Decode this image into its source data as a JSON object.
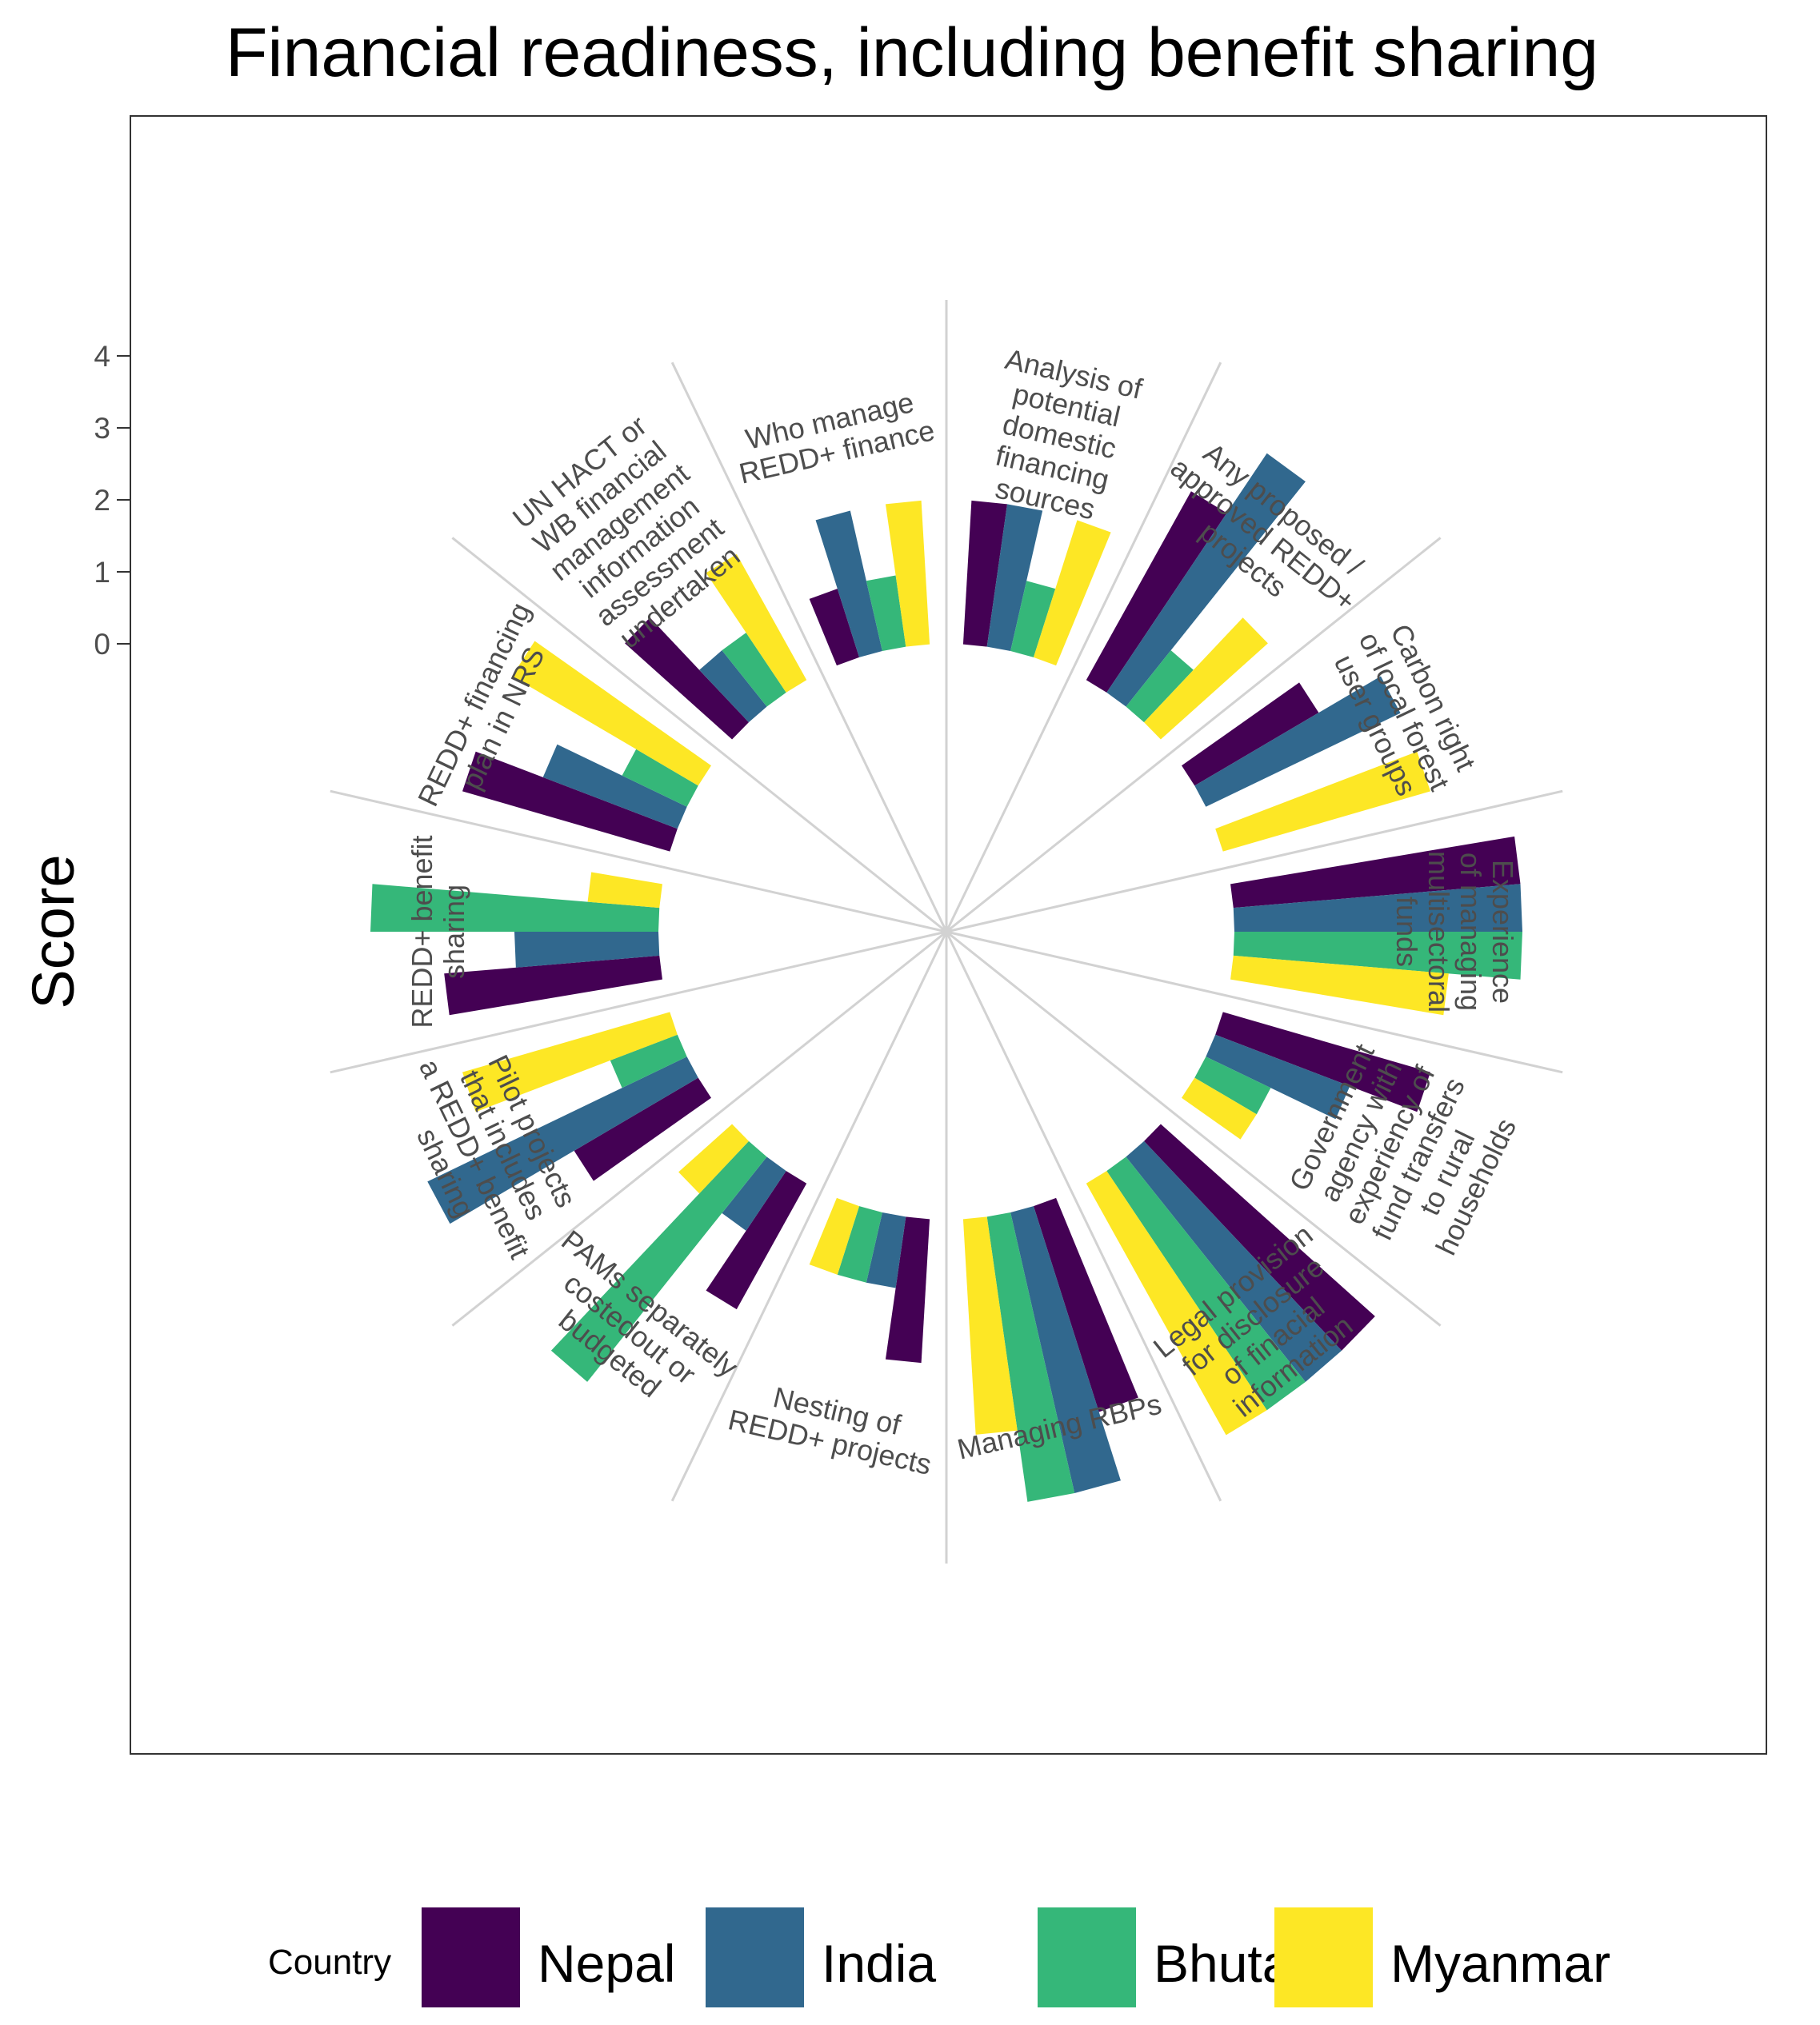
{
  "chart_data": {
    "type": "bar",
    "subtype": "circular-grouped-bar",
    "title": "Financial readiness, including benefit sharing",
    "ylabel": "Score",
    "xlabel": "",
    "ylim": [
      0,
      4
    ],
    "yticks": [
      0,
      1,
      2,
      3,
      4
    ],
    "legend": {
      "title": "Country",
      "position": "bottom"
    },
    "grid": true,
    "categories": [
      "Analysis of potential domestic financing sources",
      "Any proposed / approved REDD+ projects",
      "Carbon right of local forest user groups",
      "Experience of managing multisectoral funds",
      "Government agency with experiency of fund transfers to rural households",
      "Legal provision for disclosure of finacial information",
      "Managing RBPs",
      "Nesting of REDD+ projects",
      "PAMs separately costedout or budgeted",
      "Pilot projects that includes a REDD+ benefit sharing",
      "REDD+ benefit sharing",
      "REDD+ financing plan in NRS",
      "UN HACT or WB financial management information assessment undertaken",
      "Who manage REDD+ finance"
    ],
    "category_lines": [
      [
        "Analysis of",
        "potential",
        "domestic",
        "financing",
        "sources"
      ],
      [
        "Any proposed /",
        "approved REDD+",
        "projects"
      ],
      [
        "Carbon right",
        "of local forest",
        "user groups"
      ],
      [
        "Experience",
        "of managing",
        "multisectoral",
        "funds"
      ],
      [
        "Government",
        "agency with",
        "experiency of",
        "fund transfers",
        "to rural",
        "households"
      ],
      [
        "Legal provision",
        "for disclosure",
        "of finacial",
        "information"
      ],
      [
        "Managing RBPs"
      ],
      [
        "Nesting of",
        "REDD+ projects"
      ],
      [
        "PAMs separately",
        "costedout or",
        "budgeted"
      ],
      [
        "Pilot projects",
        "that includes",
        "a REDD+ benefit",
        "sharing"
      ],
      [
        "REDD+ benefit",
        "sharing"
      ],
      [
        "REDD+ financing",
        "plan in NRS"
      ],
      [
        "UN HACT or",
        "WB financial",
        "management",
        "information",
        "assessment",
        "undertaken"
      ],
      [
        "Who manage",
        "REDD+ finance"
      ]
    ],
    "series": [
      {
        "name": "Nepal",
        "color": "#440154",
        "values": [
          2,
          3,
          2,
          4,
          3,
          4,
          3,
          2,
          2,
          2,
          3,
          3,
          2,
          1
        ]
      },
      {
        "name": "India",
        "color": "#31688E",
        "values": [
          2,
          4,
          3,
          4,
          2,
          4,
          4,
          1,
          1,
          4,
          2,
          2,
          1,
          2
        ]
      },
      {
        "name": "Bhutan",
        "color": "#35B779",
        "values": [
          1,
          1,
          0,
          4,
          1,
          4,
          4,
          1,
          4,
          1,
          4,
          1,
          1,
          1
        ]
      },
      {
        "name": "Myanmar",
        "color": "#FDE725",
        "values": [
          2,
          2,
          3,
          3,
          1,
          4,
          3,
          1,
          1,
          3,
          1,
          3,
          2,
          2
        ]
      }
    ]
  }
}
